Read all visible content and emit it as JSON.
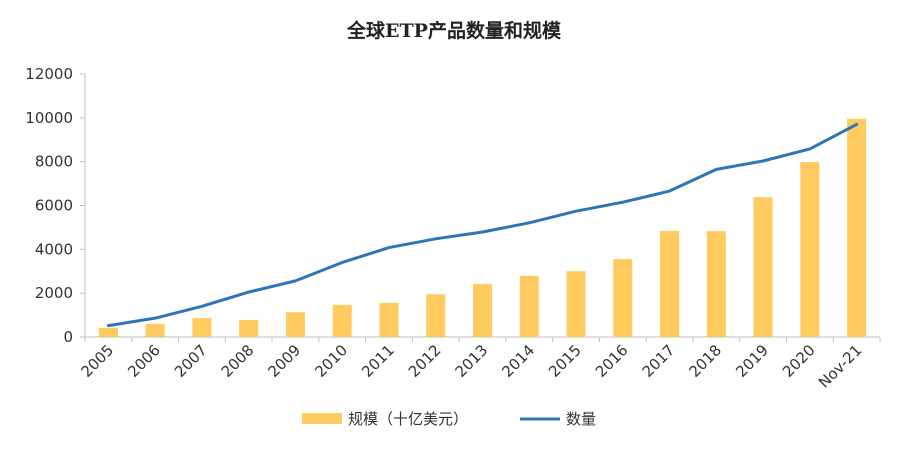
{
  "chart_data": {
    "type": "bar",
    "title": "全球ETP产品数量和规模",
    "xlabel": "",
    "ylabel": "",
    "categories": [
      "2005",
      "2006",
      "2007",
      "2008",
      "2009",
      "2010",
      "2011",
      "2012",
      "2013",
      "2014",
      "2015",
      "2016",
      "2017",
      "2018",
      "2019",
      "2020",
      "Nov-21"
    ],
    "ylim": [
      0,
      12000
    ],
    "yticks": [
      "0",
      "2000",
      "4000",
      "6000",
      "8000",
      "10000",
      "12000"
    ],
    "grid": false,
    "legend_position": "bottom",
    "series": [
      {
        "name": "规模（十亿美元）",
        "type": "bar",
        "color": "#FFCA5F",
        "values": [
          420,
          600,
          860,
          780,
          1130,
          1460,
          1560,
          1950,
          2420,
          2790,
          3000,
          3550,
          4840,
          4830,
          6380,
          7980,
          9960
        ]
      },
      {
        "name": "数量",
        "type": "line",
        "color": "#2E75B6",
        "values": [
          520,
          860,
          1400,
          2050,
          2560,
          3400,
          4080,
          4480,
          4790,
          5210,
          5740,
          6150,
          6660,
          7650,
          8030,
          8580,
          9700
        ]
      }
    ]
  }
}
